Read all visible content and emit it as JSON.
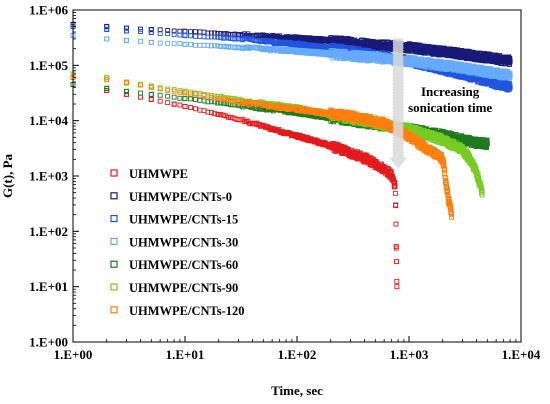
{
  "chart_data": {
    "type": "scatter",
    "title": "",
    "xlabel": "Time, sec",
    "ylabel": "G(t), Pa",
    "x_scale": "log",
    "y_scale": "log",
    "xlim": [
      1,
      10000
    ],
    "ylim": [
      1,
      1000000
    ],
    "grid": false,
    "legend_position": "center-left",
    "x_ticks": [
      "1.E+00",
      "1.E+01",
      "1.E+02",
      "1.E+03",
      "1.E+04"
    ],
    "y_ticks": [
      "1.E+00",
      "1.E+01",
      "1.E+02",
      "1.E+03",
      "1.E+04",
      "1.E+05",
      "1.E+06"
    ],
    "annotation": {
      "lines": [
        "Increasing",
        "sonication time"
      ],
      "arrow_from": [
        800,
        300000
      ],
      "arrow_to": [
        800,
        1400
      ]
    },
    "series": [
      {
        "name": "UHMWPE",
        "color": "#e41a1c",
        "marker": "square-open",
        "x": [
          2,
          3,
          5,
          8,
          10,
          20,
          40,
          80,
          150,
          250,
          400,
          550,
          650,
          700,
          720,
          730,
          750,
          760,
          770,
          780
        ],
        "y": [
          35000,
          30000,
          24000,
          20000,
          18000,
          13000,
          9000,
          6000,
          4200,
          3000,
          2100,
          1500,
          1200,
          1000,
          900,
          800,
          650,
          300,
          50,
          10
        ]
      },
      {
        "name": "UHMWPE/CNTs-0",
        "color": "#1a1a7a",
        "marker": "square-open",
        "x": [
          1,
          2,
          3,
          5,
          10,
          30,
          100,
          300,
          1000,
          3000,
          8000
        ],
        "y": [
          550000,
          500000,
          470000,
          440000,
          410000,
          360000,
          310000,
          260000,
          210000,
          160000,
          120000
        ]
      },
      {
        "name": "UHMWPE/CNTs-15",
        "color": "#2255dd",
        "marker": "square-open",
        "x": [
          1,
          2,
          3,
          5,
          10,
          30,
          100,
          300,
          1000,
          3000,
          8000
        ],
        "y": [
          500000,
          450000,
          420000,
          390000,
          350000,
          300000,
          240000,
          180000,
          120000,
          70000,
          40000
        ]
      },
      {
        "name": "UHMWPE/CNTs-30",
        "color": "#66aaff",
        "marker": "square-open",
        "x": [
          1,
          2,
          3,
          5,
          10,
          30,
          100,
          300,
          1000,
          3000,
          8000
        ],
        "y": [
          350000,
          300000,
          280000,
          260000,
          240000,
          210000,
          180000,
          150000,
          120000,
          90000,
          65000
        ]
      },
      {
        "name": "UHMWPE/CNTs-60",
        "color": "#1f7a1f",
        "marker": "square-open",
        "x": [
          1,
          2,
          3,
          5,
          10,
          30,
          100,
          300,
          1000,
          2000,
          3000,
          4000,
          5000
        ],
        "y": [
          45000,
          38000,
          34000,
          30000,
          25000,
          19000,
          14000,
          10000,
          7000,
          5500,
          4500,
          4000,
          3800
        ]
      },
      {
        "name": "UHMWPE/CNTs-90",
        "color": "#77cc22",
        "marker": "square-open",
        "x": [
          1,
          2,
          3,
          5,
          10,
          30,
          100,
          300,
          1000,
          2000,
          3000,
          3500,
          4000,
          4500
        ],
        "y": [
          70000,
          60000,
          50000,
          42000,
          34000,
          24000,
          17000,
          11000,
          7000,
          4500,
          3000,
          2000,
          1200,
          500
        ]
      },
      {
        "name": "UHMWPE/CNTs-120",
        "color": "#ff7f0e",
        "marker": "square-open",
        "x": [
          1,
          2,
          3,
          5,
          10,
          30,
          100,
          300,
          600,
          900,
          1200,
          1500,
          2000,
          2200,
          2400
        ],
        "y": [
          60000,
          55000,
          48000,
          40000,
          32000,
          22000,
          16000,
          12000,
          9000,
          6000,
          4000,
          3000,
          2000,
          500,
          200
        ]
      }
    ]
  }
}
